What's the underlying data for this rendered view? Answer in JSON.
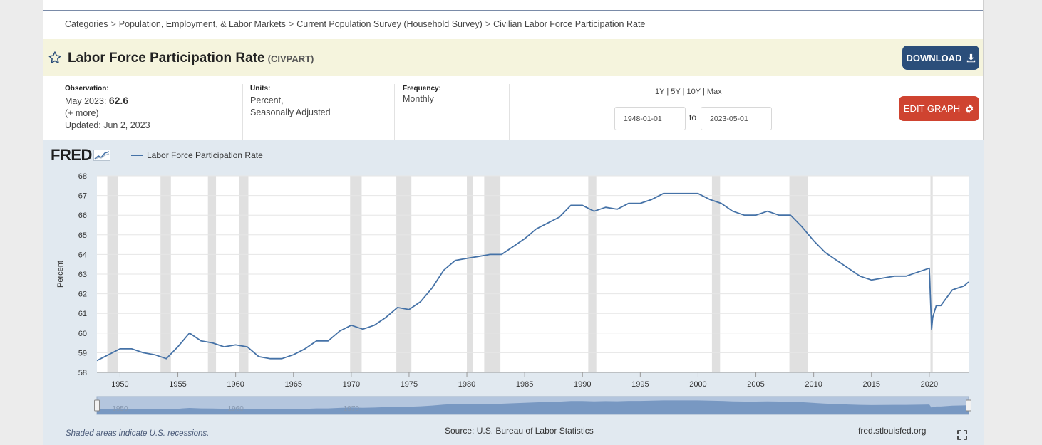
{
  "breadcrumb": {
    "items": [
      "Categories",
      "Population, Employment, & Labor Markets",
      "Current Population Survey (Household Survey)",
      "Civilian Labor Force Participation Rate"
    ],
    "separator": ">"
  },
  "header": {
    "title": "Labor Force Participation Rate",
    "series_id": "(CIVPART)",
    "download_label": "DOWNLOAD",
    "edit_graph_label": "EDIT GRAPH"
  },
  "meta": {
    "observation_label": "Observation:",
    "observation_date": "May 2023:",
    "observation_value": "62.6",
    "more_label": "(+ more)",
    "updated": "Updated: Jun 2, 2023",
    "units_label": "Units:",
    "units_line1": "Percent,",
    "units_line2": "Seasonally Adjusted",
    "frequency_label": "Frequency:",
    "frequency_value": "Monthly"
  },
  "range": {
    "links": [
      "1Y",
      "5Y",
      "10Y",
      "Max"
    ],
    "separator": "|",
    "start_date": "1948-01-01",
    "to_label": "to",
    "end_date": "2023-05-01"
  },
  "graph": {
    "logo_text": "FRED",
    "footer_recession": "Shaded areas indicate U.S. recessions.",
    "footer_source": "Source: U.S. Bureau of Labor Statistics",
    "footer_url": "fred.stlouisfed.org"
  },
  "colors": {
    "series": "#4572a7",
    "recession": "#e0e0e0",
    "download_button": "#2b4e7a",
    "edit_button": "#cf4330",
    "title_bar": "#f5f4dd",
    "graph_panel": "#e1e9f0"
  },
  "chart_data": {
    "type": "line",
    "title": "Labor Force Participation Rate",
    "legend": [
      "Labor Force Participation Rate"
    ],
    "xlabel": "",
    "ylabel": "Percent",
    "xlim": [
      1948.0,
      2023.4
    ],
    "ylim": [
      58,
      68
    ],
    "grid": true,
    "x_ticks": [
      1950,
      1955,
      1960,
      1965,
      1970,
      1975,
      1980,
      1985,
      1990,
      1995,
      2000,
      2005,
      2010,
      2015,
      2020
    ],
    "y_ticks": [
      58,
      59,
      60,
      61,
      62,
      63,
      64,
      65,
      66,
      67,
      68
    ],
    "recessions": [
      [
        1948.9,
        1949.8
      ],
      [
        1953.5,
        1954.4
      ],
      [
        1957.6,
        1958.3
      ],
      [
        1960.3,
        1961.1
      ],
      [
        1969.9,
        1970.9
      ],
      [
        1973.9,
        1975.2
      ],
      [
        1980.0,
        1980.5
      ],
      [
        1981.5,
        1982.9
      ],
      [
        1990.5,
        1991.2
      ],
      [
        2001.2,
        2001.9
      ],
      [
        2007.9,
        2009.5
      ],
      [
        2020.1,
        2020.3
      ]
    ],
    "series": [
      {
        "name": "Labor Force Participation Rate",
        "x": [
          1948.0,
          1949.0,
          1950.0,
          1951.0,
          1952.0,
          1953.0,
          1954.0,
          1955.0,
          1956.0,
          1957.0,
          1958.0,
          1959.0,
          1960.0,
          1961.0,
          1962.0,
          1963.0,
          1964.0,
          1965.0,
          1966.0,
          1967.0,
          1968.0,
          1969.0,
          1970.0,
          1971.0,
          1972.0,
          1973.0,
          1974.0,
          1975.0,
          1976.0,
          1977.0,
          1978.0,
          1979.0,
          1980.0,
          1981.0,
          1982.0,
          1983.0,
          1984.0,
          1985.0,
          1986.0,
          1987.0,
          1988.0,
          1989.0,
          1990.0,
          1991.0,
          1992.0,
          1993.0,
          1994.0,
          1995.0,
          1996.0,
          1997.0,
          1998.0,
          1999.0,
          2000.0,
          2001.0,
          2002.0,
          2003.0,
          2004.0,
          2005.0,
          2006.0,
          2007.0,
          2008.0,
          2009.0,
          2010.0,
          2011.0,
          2012.0,
          2013.0,
          2014.0,
          2015.0,
          2016.0,
          2017.0,
          2018.0,
          2019.0,
          2020.0,
          2020.2,
          2020.3,
          2020.6,
          2021.0,
          2022.0,
          2023.0,
          2023.4
        ],
        "values": [
          58.6,
          58.9,
          59.2,
          59.2,
          59.0,
          58.9,
          58.7,
          59.3,
          60.0,
          59.6,
          59.5,
          59.3,
          59.4,
          59.3,
          58.8,
          58.7,
          58.7,
          58.9,
          59.2,
          59.6,
          59.6,
          60.1,
          60.4,
          60.2,
          60.4,
          60.8,
          61.3,
          61.2,
          61.6,
          62.3,
          63.2,
          63.7,
          63.8,
          63.9,
          64.0,
          64.0,
          64.4,
          64.8,
          65.3,
          65.6,
          65.9,
          66.5,
          66.5,
          66.2,
          66.4,
          66.3,
          66.6,
          66.6,
          66.8,
          67.1,
          67.1,
          67.1,
          67.1,
          66.8,
          66.6,
          66.2,
          66.0,
          66.0,
          66.2,
          66.0,
          66.0,
          65.4,
          64.7,
          64.1,
          63.7,
          63.3,
          62.9,
          62.7,
          62.8,
          62.9,
          62.9,
          63.1,
          63.3,
          60.2,
          60.8,
          61.4,
          61.4,
          62.2,
          62.4,
          62.6
        ]
      }
    ]
  }
}
